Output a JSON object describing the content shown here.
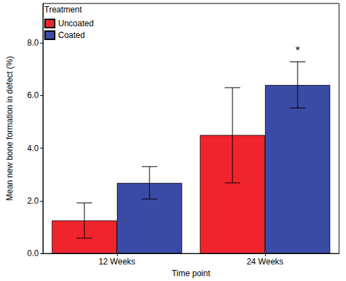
{
  "chart_data": {
    "type": "bar",
    "x_label": "Time point",
    "y_label": "Mean new bone formation in defect (%)",
    "categories": [
      "12 Weeks",
      "24 Weeks"
    ],
    "series": [
      {
        "name": "Uncoated",
        "color": "#f0242c",
        "values": [
          1.25,
          4.5
        ],
        "error_low": [
          0.58,
          2.68
        ],
        "error_high": [
          1.92,
          6.3
        ]
      },
      {
        "name": "Coated",
        "color": "#3a4ba6",
        "values": [
          2.68,
          6.4
        ],
        "error_low": [
          2.07,
          5.53
        ],
        "error_high": [
          3.3,
          7.28
        ]
      }
    ],
    "ylim": [
      0,
      9.5
    ],
    "yticks": [
      {
        "value": 0,
        "label": "0.0"
      },
      {
        "value": 2,
        "label": "2.0"
      },
      {
        "value": 4,
        "label": "4.0"
      },
      {
        "value": 6,
        "label": "6.0"
      },
      {
        "value": 8,
        "label": "8.0"
      }
    ],
    "grid": false,
    "legend": "upper left",
    "legend_title": "Treatment",
    "annotations": [
      {
        "text": "*",
        "category": "24 Weeks",
        "series": "Coated",
        "y": 7.7
      }
    ]
  }
}
